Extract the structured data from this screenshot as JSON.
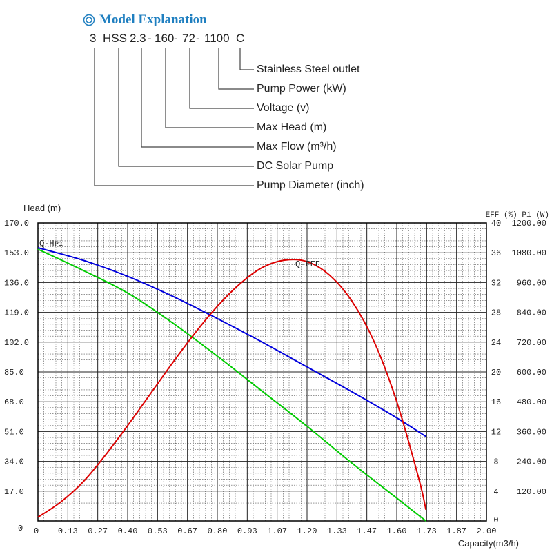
{
  "header": {
    "title": "Model Explanation",
    "icon": "double-circle-icon",
    "codes": [
      "3",
      "HSS",
      "2.3",
      "-",
      "160",
      "-",
      "72",
      "-",
      "1100",
      "C"
    ],
    "descriptions": [
      "Stainless Steel outlet",
      "Pump Power (kW)",
      "Voltage (v)",
      "Max Head (m)",
      "Max Flow (m³/h)",
      "DC Solar Pump",
      "Pump Diameter (inch)"
    ]
  },
  "chart_data": {
    "type": "line",
    "title": "",
    "xlabel": "Capacity(m3/h)",
    "ylabel_left": "Head (m)",
    "ylabel_right": "EFF (%)  P1 (W)",
    "xlim": [
      0,
      2.0
    ],
    "ylim": [
      0,
      170
    ],
    "x_ticks": [
      "0",
      "0.13",
      "0.27",
      "0.40",
      "0.53",
      "0.67",
      "0.80",
      "0.93",
      "1.07",
      "1.20",
      "1.33",
      "1.47",
      "1.60",
      "1.73",
      "1.87",
      "2.00"
    ],
    "y_ticks_head": [
      "0",
      "17.0",
      "34.0",
      "51.0",
      "68.0",
      "85.0",
      "102.0",
      "119.0",
      "136.0",
      "153.0",
      "170.0"
    ],
    "y_ticks_eff": [
      "0",
      "4",
      "8",
      "12",
      "16",
      "20",
      "24",
      "28",
      "32",
      "36",
      "40"
    ],
    "y_ticks_power": [
      "",
      "120.00",
      "240.00",
      "360.00",
      "480.00",
      "600.00",
      "720.00",
      "840.00",
      "960.00",
      "1080.00",
      "1200.00"
    ],
    "series": [
      {
        "name": "Q-H",
        "axis": "head",
        "color": "#00cc00",
        "x": [
          0,
          0.2,
          0.4,
          0.6,
          0.8,
          1.0,
          1.2,
          1.4,
          1.6,
          1.73
        ],
        "y": [
          155,
          143,
          130,
          113,
          94,
          74,
          54,
          33,
          13,
          0
        ]
      },
      {
        "name": "Q-P1",
        "axis": "power",
        "color": "#0000dd",
        "x": [
          0,
          0.2,
          0.4,
          0.6,
          0.8,
          1.0,
          1.2,
          1.4,
          1.6,
          1.73
        ],
        "y": [
          1100,
          1050,
          985,
          905,
          815,
          720,
          620,
          520,
          415,
          340
        ]
      },
      {
        "name": "Q-EFF",
        "axis": "eff",
        "color": "#dd0000",
        "x": [
          0,
          0.1,
          0.2,
          0.3,
          0.4,
          0.5,
          0.6,
          0.7,
          0.8,
          0.9,
          1.0,
          1.1,
          1.2,
          1.3,
          1.4,
          1.5,
          1.6,
          1.7,
          1.73
        ],
        "y": [
          0.5,
          2.5,
          5.2,
          8.8,
          12.8,
          17.0,
          21.2,
          25.2,
          28.8,
          31.8,
          34.0,
          35.0,
          34.8,
          33.0,
          29.5,
          24.0,
          16.0,
          5.5,
          1.5
        ]
      }
    ],
    "annotations": [
      "Q-H",
      "P1",
      "Q-EFF"
    ]
  }
}
